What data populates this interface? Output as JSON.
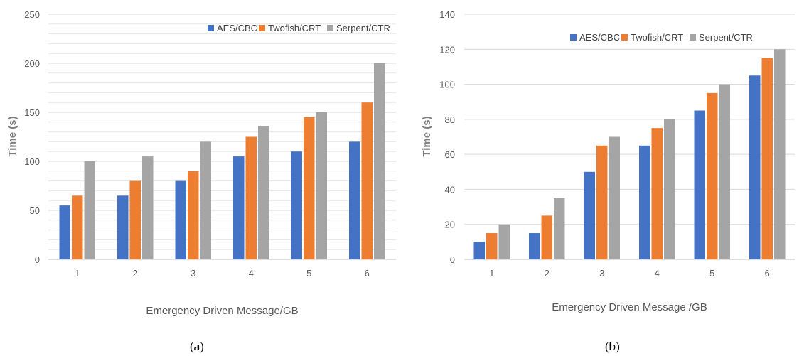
{
  "colors": {
    "aes": "#4472C4",
    "twofish": "#ED7D31",
    "serpent": "#A5A5A5",
    "grid": "#d9d9d9",
    "axis": "#bfbfbf"
  },
  "captions": [
    {
      "open": "(",
      "letter": "a",
      "close": ")"
    },
    {
      "open": "(",
      "letter": "b",
      "close": ")"
    }
  ],
  "chart_data": [
    {
      "type": "bar",
      "xlabel": "Emergency Driven Message/GB",
      "ylabel": "Time (s)",
      "categories": [
        "1",
        "2",
        "3",
        "4",
        "5",
        "6"
      ],
      "ylim": [
        0,
        250
      ],
      "yticks": [
        "0",
        "50",
        "100",
        "150",
        "200",
        "250"
      ],
      "ytick_values": [
        0,
        50,
        100,
        150,
        200,
        250
      ],
      "grid": "horizontal minor",
      "legend": "top-right",
      "series": [
        {
          "name": "AES/CBC",
          "values": [
            55,
            65,
            80,
            105,
            110,
            120
          ]
        },
        {
          "name": "Twofish/CRT",
          "values": [
            65,
            80,
            90,
            125,
            145,
            160
          ]
        },
        {
          "name": "Serpent/CTR",
          "values": [
            100,
            105,
            120,
            136,
            150,
            200
          ]
        }
      ]
    },
    {
      "type": "bar",
      "xlabel": "Emergency Driven Message /GB",
      "ylabel": "Time (s)",
      "categories": [
        "1",
        "2",
        "3",
        "4",
        "5",
        "6"
      ],
      "ylim": [
        0,
        140
      ],
      "yticks": [
        "0",
        "20",
        "40",
        "60",
        "80",
        "100",
        "120",
        "140"
      ],
      "ytick_values": [
        0,
        20,
        40,
        60,
        80,
        100,
        120,
        140
      ],
      "grid": "horizontal",
      "legend": "top-right",
      "series": [
        {
          "name": "AES/CBC",
          "values": [
            10,
            15,
            50,
            65,
            85,
            105
          ]
        },
        {
          "name": "Twofish/CRT",
          "values": [
            15,
            25,
            65,
            75,
            95,
            115
          ]
        },
        {
          "name": "Serpent/CTR",
          "values": [
            20,
            35,
            70,
            80,
            100,
            120
          ]
        }
      ]
    }
  ]
}
